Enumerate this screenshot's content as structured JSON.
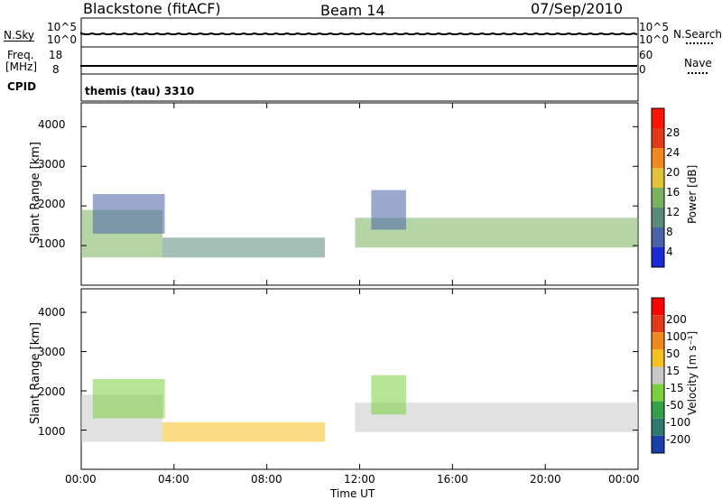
{
  "header": {
    "station": "Blackstone (fitACF)",
    "beam": "Beam 14",
    "date": "07/Sep/2010"
  },
  "top_panels": {
    "nsky_label": "N.Sky",
    "nsky_ticks": [
      "10^5",
      "10^0"
    ],
    "nsearch_label": "N.Search",
    "nsearch_ticks": [
      "10^5",
      "10^0"
    ],
    "freq_label": "Freq.",
    "freq_unit": "[MHz]",
    "freq_ticks": [
      "18",
      "8"
    ],
    "nave_label": "Nave",
    "nave_ticks": [
      "60",
      "0"
    ],
    "cpid_label": "CPID",
    "cpid_value": "themis (tau) 3310"
  },
  "chart_data": [
    {
      "type": "heatmap",
      "name": "power",
      "ylabel": "Slant Range [km]",
      "ylim": [
        0,
        4600
      ],
      "yticks": [
        "1000",
        "2000",
        "3000",
        "4000"
      ],
      "xlim": [
        0,
        24
      ],
      "colorbar_label": "Power [dB]",
      "colorbar_ticks": [
        "4",
        "8",
        "12",
        "16",
        "20",
        "24",
        "28"
      ],
      "colors": [
        "#1a2ad6",
        "#4a62a8",
        "#5a8a78",
        "#79b25f",
        "#e2c23a",
        "#f08a1e",
        "#e23a1a",
        "#ff1400"
      ],
      "echo_regions": [
        {
          "t0": 0.0,
          "t1": 3.5,
          "r0": 700,
          "r1": 1900,
          "level": 3
        },
        {
          "t0": 0.5,
          "t1": 3.6,
          "r0": 1300,
          "r1": 2300,
          "level": 1
        },
        {
          "t0": 3.5,
          "t1": 10.5,
          "r0": 700,
          "r1": 1200,
          "level": 2
        },
        {
          "t0": 11.8,
          "t1": 24.0,
          "r0": 950,
          "r1": 1700,
          "level": 3
        },
        {
          "t0": 12.5,
          "t1": 14.0,
          "r0": 1400,
          "r1": 2400,
          "level": 1
        }
      ]
    },
    {
      "type": "heatmap",
      "name": "velocity",
      "ylabel": "Slant Range [km]",
      "ylim": [
        0,
        4600
      ],
      "yticks": [
        "1000",
        "2000",
        "3000",
        "4000"
      ],
      "xlim": [
        0,
        24
      ],
      "xticks": [
        "00:00",
        "04:00",
        "08:00",
        "12:00",
        "16:00",
        "20:00",
        "00:00"
      ],
      "xlabel": "Time UT",
      "colorbar_label": "Velocity [m s⁻¹]",
      "colorbar_ticks": [
        "200",
        "100",
        "50",
        "15",
        "-15",
        "-50",
        "-100",
        "-200"
      ],
      "colors": [
        "#1a3fa8",
        "#2e7a70",
        "#35a04a",
        "#7ad040",
        "#c8c8c8",
        "#f5c020",
        "#f08a1e",
        "#e23a1a",
        "#ff0000"
      ],
      "echo_regions": [
        {
          "t0": 0.0,
          "t1": 3.5,
          "r0": 700,
          "r1": 1900,
          "level": 4
        },
        {
          "t0": 0.5,
          "t1": 3.6,
          "r0": 1300,
          "r1": 2300,
          "level": 3
        },
        {
          "t0": 3.5,
          "t1": 10.5,
          "r0": 700,
          "r1": 1200,
          "level": 5
        },
        {
          "t0": 11.8,
          "t1": 24.0,
          "r0": 950,
          "r1": 1700,
          "level": 4
        },
        {
          "t0": 12.5,
          "t1": 14.0,
          "r0": 1400,
          "r1": 2400,
          "level": 3
        }
      ]
    }
  ]
}
